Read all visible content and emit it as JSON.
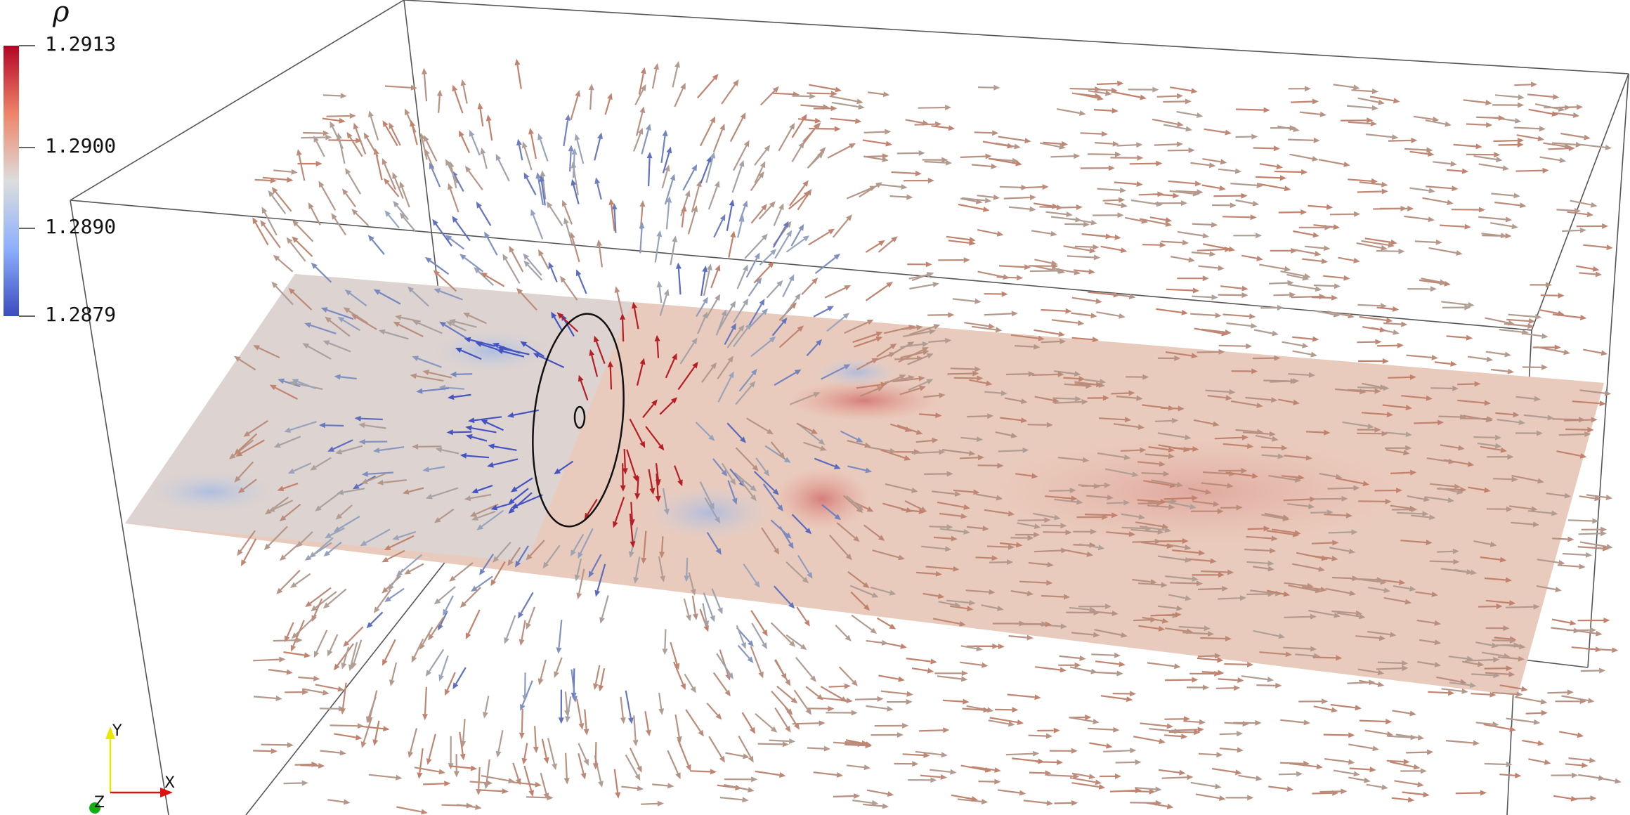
{
  "scalar_bar": {
    "title": "ρ",
    "labels": [
      "1.2913",
      "1.2900",
      "1.2890",
      "1.2879"
    ],
    "colors": {
      "max": "#b40426",
      "mid": "#dddddd",
      "min": "#3b4cc0"
    }
  },
  "orientation_axes": {
    "y": "Y",
    "x": "X",
    "z": "Z",
    "colors": {
      "y": "#e8e800",
      "x": "#e01010",
      "z": "#10b010"
    }
  },
  "plane_color": "#e8c4b4"
}
